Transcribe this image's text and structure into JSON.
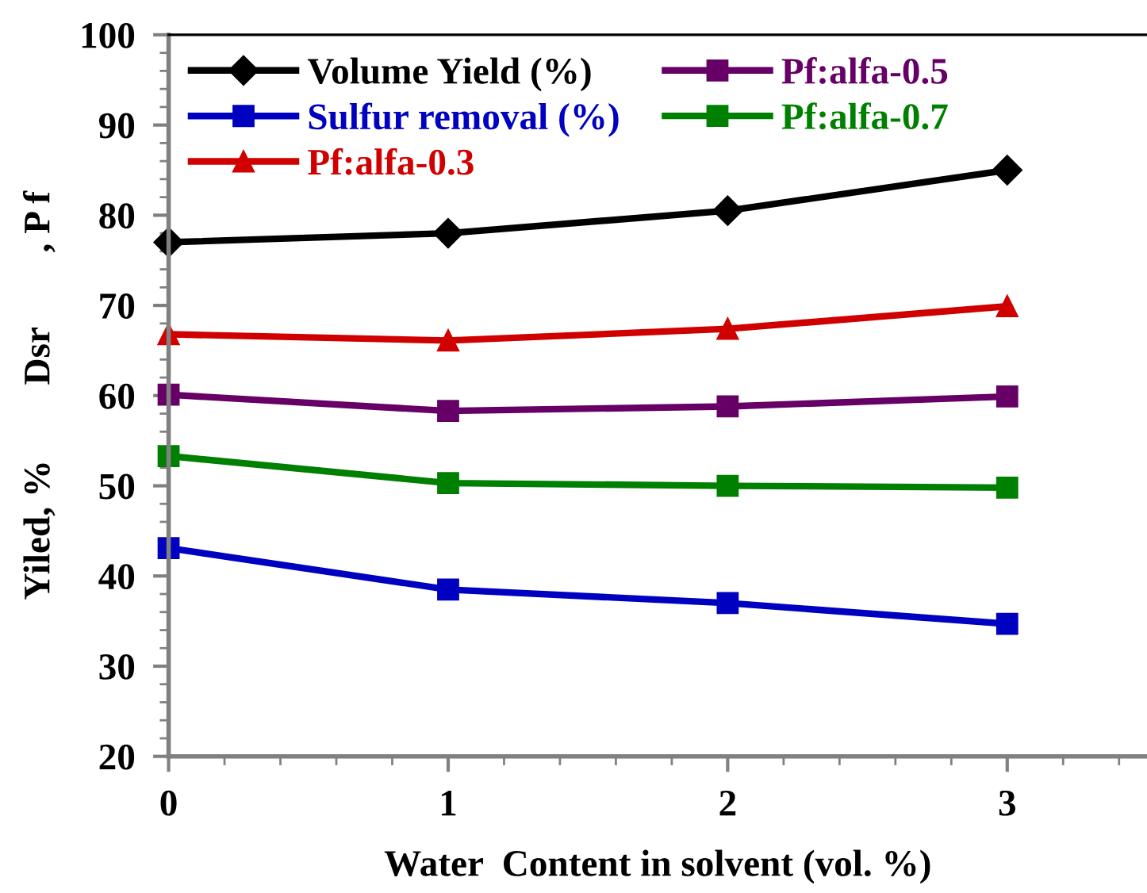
{
  "chart_data": {
    "type": "line",
    "xlabel": "Water  Content in solvent (vol. %)",
    "ylabel": "Yiled, %        Dsr        , P f",
    "x": [
      0,
      1,
      2,
      3
    ],
    "xlim": [
      0,
      3.5
    ],
    "xticks": [
      0,
      1,
      2,
      3
    ],
    "ylim": [
      20,
      100
    ],
    "yticks": [
      20,
      30,
      40,
      50,
      60,
      70,
      80,
      90,
      100
    ],
    "grid": false,
    "legend": "top left",
    "line_style": "solid",
    "series": [
      {
        "name": "Volume Yield (%)",
        "color": "#000000",
        "marker": "diamond",
        "values": [
          77.0,
          78.0,
          80.5,
          85.0
        ]
      },
      {
        "name": "Sulfur removal (%)",
        "color": "#0000c0",
        "marker": "square",
        "values": [
          43.1,
          38.5,
          37.0,
          34.7
        ]
      },
      {
        "name": "Pf:alfa-0.3",
        "color": "#d00000",
        "marker": "triangle",
        "values": [
          66.8,
          66.1,
          67.4,
          69.9
        ]
      },
      {
        "name": "Pf:alfa-0.5",
        "color": "#660066",
        "marker": "square",
        "values": [
          60.1,
          58.3,
          58.8,
          59.9
        ]
      },
      {
        "name": "Pf:alfa-0.7",
        "color": "#008000",
        "marker": "square",
        "values": [
          53.3,
          50.3,
          50.0,
          49.8
        ]
      }
    ]
  }
}
